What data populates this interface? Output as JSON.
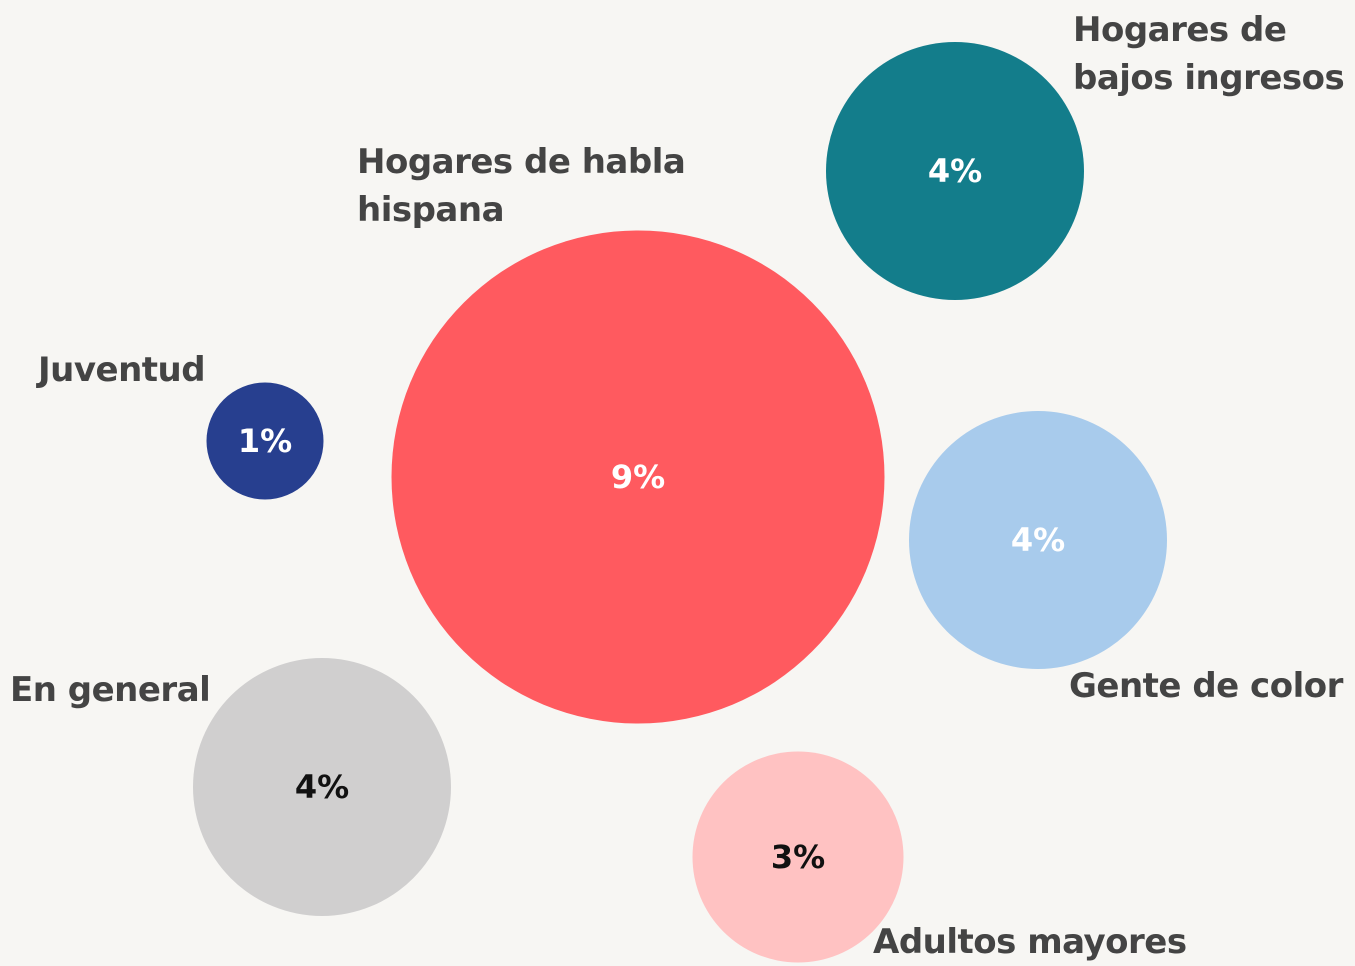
{
  "chart_data": {
    "type": "bubble",
    "categories": [
      "Hogares de habla hispana",
      "Hogares de bajos ingresos",
      "Juventud",
      "Gente de color",
      "En general",
      "Adultos mayores"
    ],
    "values": [
      9,
      4,
      1,
      4,
      4,
      3
    ],
    "value_labels": [
      "9%",
      "4%",
      "1%",
      "4%",
      "4%",
      "3%"
    ],
    "colors": [
      "#ff5a5f",
      "#137d8b",
      "#273f8f",
      "#a8cbec",
      "#d0cfcf",
      "#ffc2c2"
    ]
  }
}
